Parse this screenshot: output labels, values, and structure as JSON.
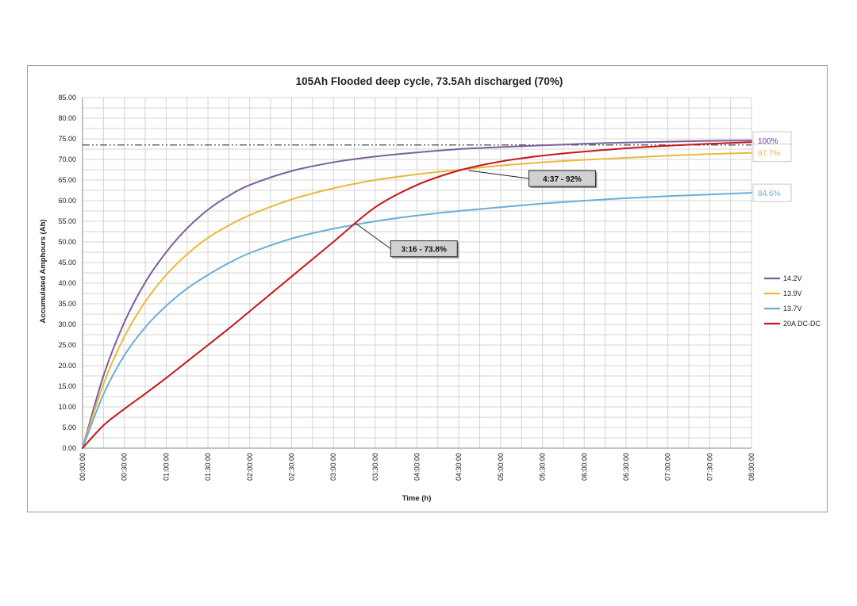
{
  "chart_data": {
    "type": "line",
    "title": "105Ah Flooded deep cycle, 73.5Ah discharged (70%)",
    "xlabel": "Time (h)",
    "ylabel": "Accumulated Amphours (Ah)",
    "xlim_minutes": [
      0,
      480
    ],
    "ylim": [
      0,
      85
    ],
    "y_ticks": [
      "0.00",
      "5.00",
      "10.00",
      "15.00",
      "20.00",
      "25.00",
      "30.00",
      "35.00",
      "40.00",
      "45.00",
      "50.00",
      "55.00",
      "60.00",
      "65.00",
      "70.00",
      "75.00",
      "80.00",
      "85.00"
    ],
    "x_ticks": [
      "00:00:00",
      "00:30:00",
      "01:00:00",
      "01:30:00",
      "02:00:00",
      "02:30:00",
      "03:00:00",
      "03:30:00",
      "04:00:00",
      "04:30:00",
      "05:00:00",
      "05:30:00",
      "06:00:00",
      "06:30:00",
      "07:00:00",
      "07:30:00",
      "08:00:00"
    ],
    "grid": true,
    "legend_position": "right",
    "reference_line": {
      "y": 73.5,
      "style": "dash-dot",
      "color": "#333333"
    },
    "x": [
      "00:00:00",
      "00:15:00",
      "00:30:00",
      "00:45:00",
      "01:00:00",
      "01:15:00",
      "01:30:00",
      "01:45:00",
      "02:00:00",
      "02:30:00",
      "03:00:00",
      "03:30:00",
      "04:00:00",
      "04:30:00",
      "05:00:00",
      "05:30:00",
      "06:00:00",
      "06:30:00",
      "07:00:00",
      "07:30:00",
      "08:00:00"
    ],
    "series": [
      {
        "name": "14.2V",
        "color": "#7b5f9e",
        "values": [
          0,
          17.5,
          30.5,
          40.2,
          47.5,
          53.3,
          57.8,
          61.2,
          63.8,
          67.2,
          69.3,
          70.7,
          71.7,
          72.5,
          73.0,
          73.4,
          73.8,
          74.1,
          74.3,
          74.5,
          74.6
        ]
      },
      {
        "name": "13.9V",
        "color": "#e8b93a",
        "values": [
          0,
          15.5,
          27.0,
          35.5,
          42.0,
          47.0,
          51.0,
          54.0,
          56.5,
          60.3,
          63.0,
          65.0,
          66.4,
          67.5,
          68.5,
          69.3,
          69.9,
          70.4,
          70.9,
          71.3,
          71.6
        ]
      },
      {
        "name": "13.7V",
        "color": "#6aaed8",
        "values": [
          0,
          13.0,
          22.5,
          29.3,
          34.5,
          38.7,
          42.0,
          44.9,
          47.3,
          50.8,
          53.2,
          55.0,
          56.4,
          57.5,
          58.4,
          59.3,
          60.0,
          60.6,
          61.1,
          61.5,
          61.9
        ]
      },
      {
        "name": "20A DC-DC",
        "color": "#c8161b",
        "values": [
          0,
          5.5,
          9.5,
          13.2,
          17.0,
          21.0,
          25.0,
          29.0,
          33.2,
          41.6,
          50.0,
          58.4,
          63.8,
          67.3,
          69.5,
          70.9,
          71.9,
          72.7,
          73.3,
          73.8,
          74.2
        ]
      }
    ],
    "end_labels": [
      {
        "text": "100%",
        "series": "14.2V",
        "color": "#6a3d9a"
      },
      {
        "text": "97.7%",
        "series": "13.9V",
        "color": "#e8b93a"
      },
      {
        "text": "84.6%",
        "series": "13.7V",
        "color": "#6aaed8"
      }
    ],
    "annotations": [
      {
        "text": "3:16 - 73.8%",
        "x_minutes": 196,
        "y": 54.5
      },
      {
        "text": "4:37 - 92%",
        "x_minutes": 277,
        "y": 67.3
      }
    ]
  }
}
